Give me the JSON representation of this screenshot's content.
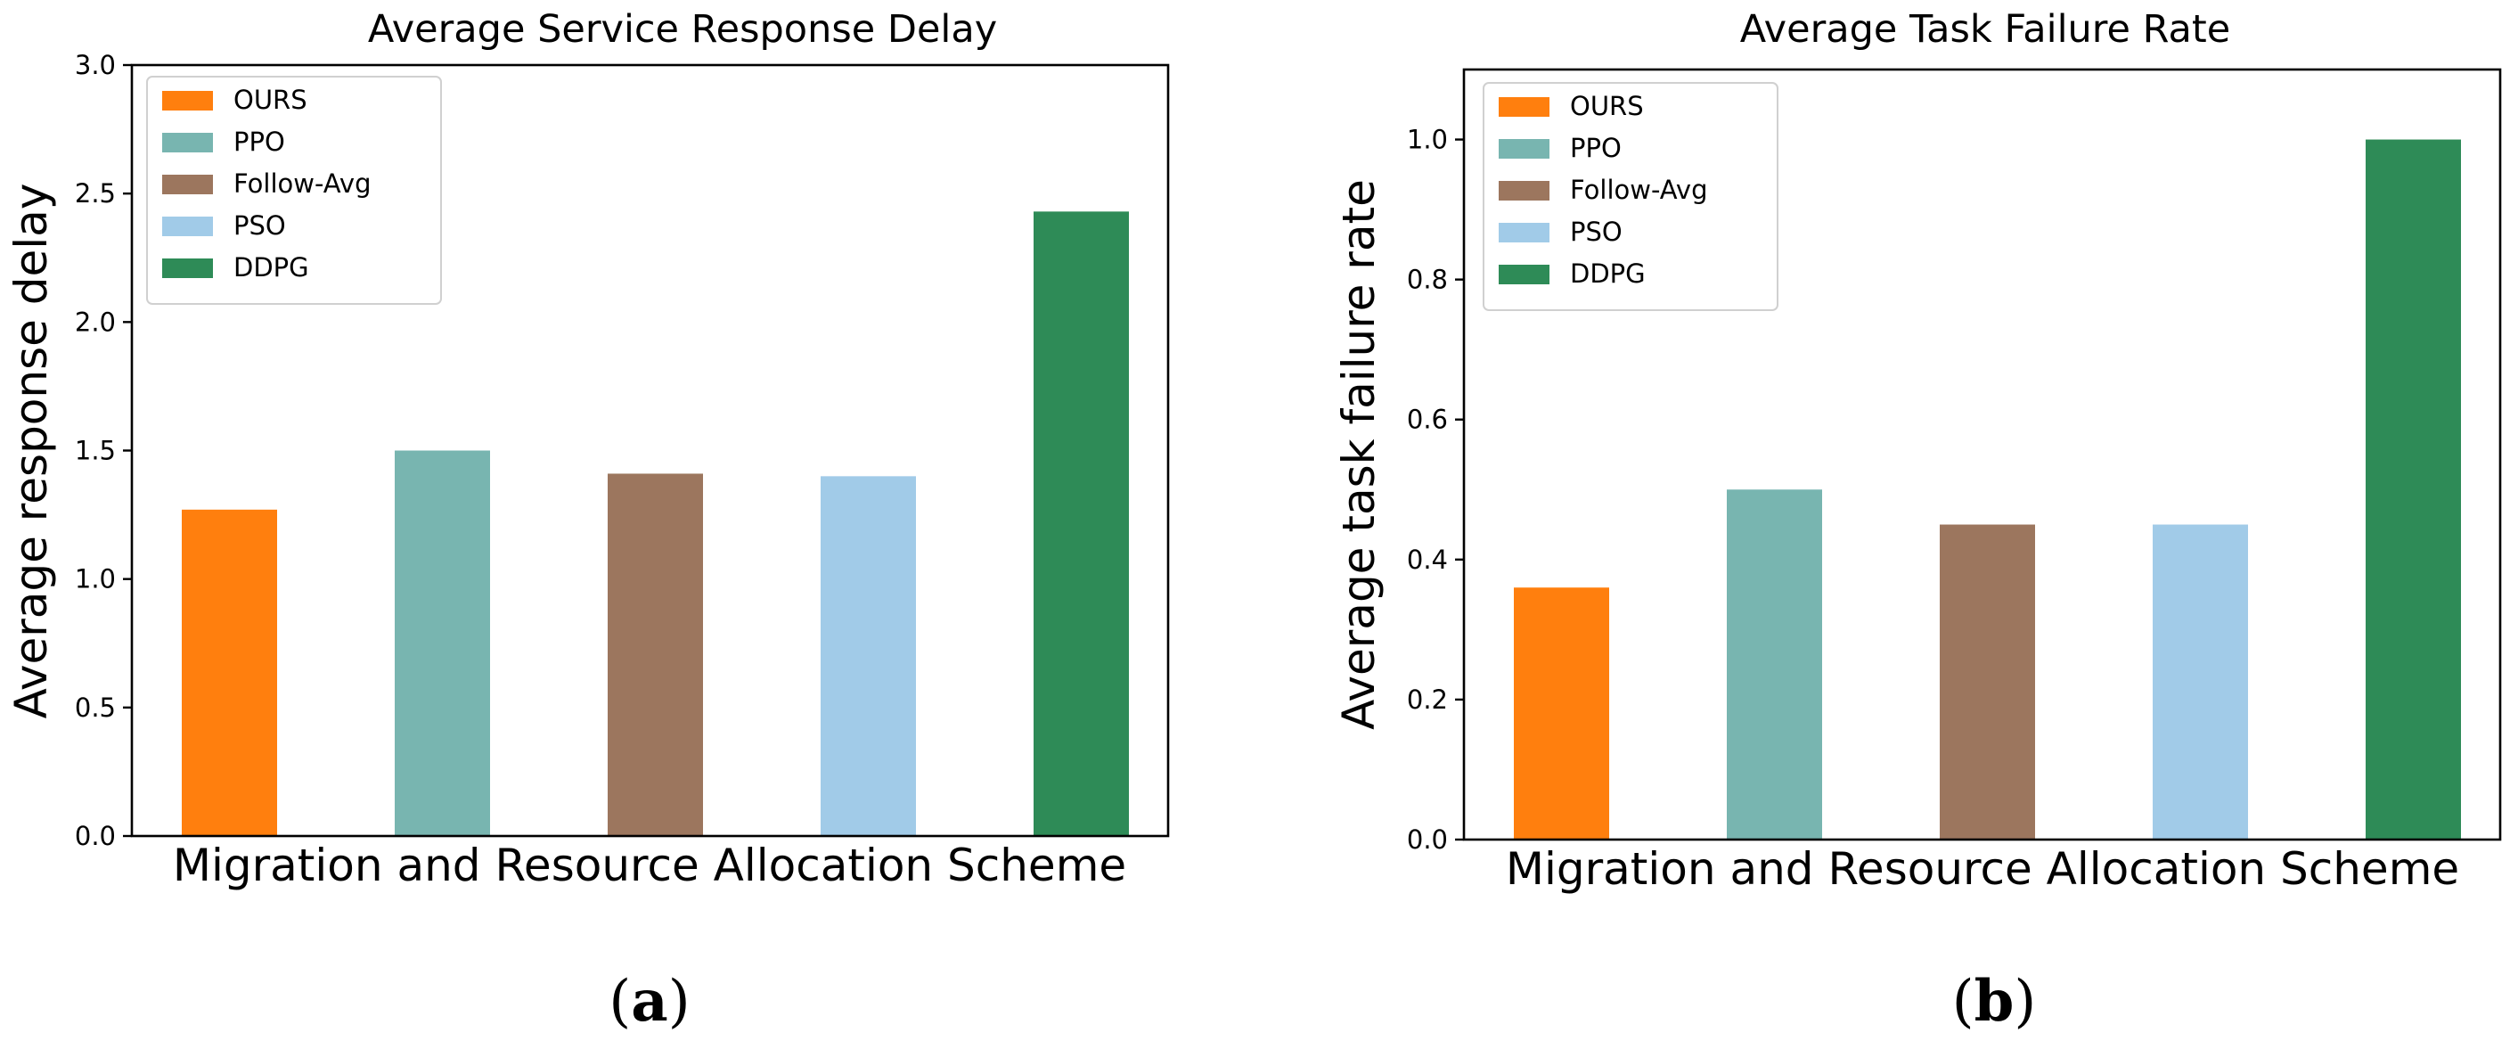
{
  "chart_data": [
    {
      "type": "bar",
      "title": "Average Service Response Delay",
      "xlabel": "Migration and Resource Allocation Scheme",
      "ylabel": "Average response delay",
      "ylim": [
        0,
        3.0
      ],
      "yticks": [
        0.0,
        0.5,
        1.0,
        1.5,
        2.0,
        2.5,
        3.0
      ],
      "ytick_labels": [
        "0.0",
        "0.5",
        "1.0",
        "1.5",
        "2.0",
        "2.5",
        "3.0"
      ],
      "categories": [
        "OURS",
        "PPO",
        "Follow-Avg",
        "PSO",
        "DDPG"
      ],
      "values": [
        1.27,
        1.5,
        1.41,
        1.4,
        2.43
      ],
      "legend": "top-left",
      "grid": false
    },
    {
      "type": "bar",
      "title": "Average Task Failure Rate",
      "xlabel": "Migration and Resource Allocation Scheme",
      "ylabel": "Average task failure rate",
      "ylim": [
        0,
        1.1
      ],
      "yticks": [
        0.0,
        0.2,
        0.4,
        0.6,
        0.8,
        1.0
      ],
      "ytick_labels": [
        "0.0",
        "0.2",
        "0.4",
        "0.6",
        "0.8",
        "1.0"
      ],
      "categories": [
        "OURS",
        "PPO",
        "Follow-Avg",
        "PSO",
        "DDPG"
      ],
      "values": [
        0.36,
        0.5,
        0.45,
        0.45,
        1.0
      ],
      "legend": "top-left",
      "grid": false
    }
  ],
  "series_colors": [
    "#ff7f0e",
    "#78b5b0",
    "#9c765e",
    "#a1cbe8",
    "#2e8b57"
  ],
  "captions": [
    "(a)",
    "(b)"
  ]
}
